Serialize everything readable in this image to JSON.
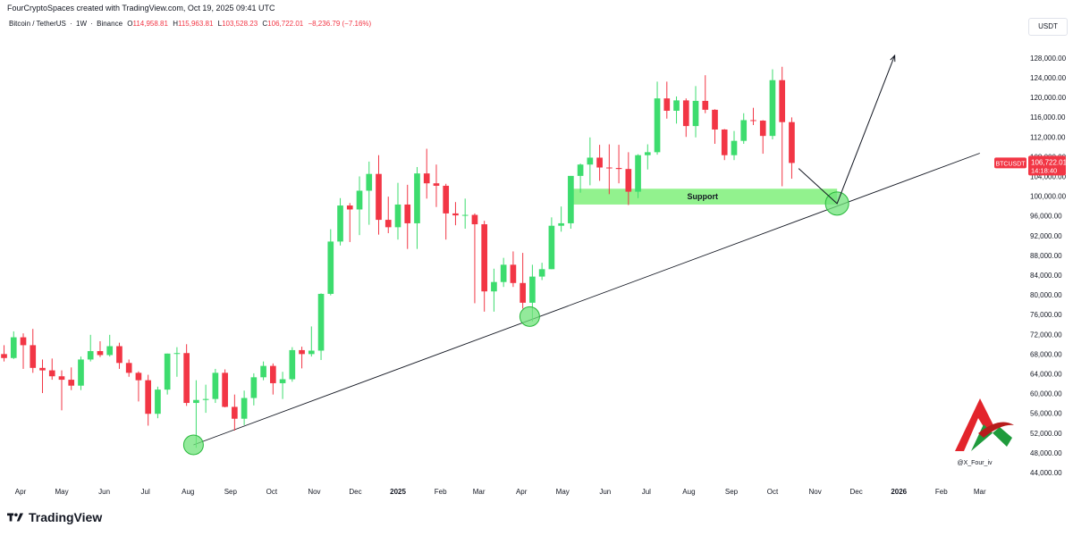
{
  "header": {
    "attribution": "FourCryptoSpaces created with TradingView.com, Oct 19, 2025 09:41 UTC",
    "symbol": "Bitcoin / TetherUS",
    "interval": "1W",
    "exchange": "Binance",
    "ohlc": {
      "open_label": "O",
      "open": "114,958.81",
      "high_label": "H",
      "high": "115,963.81",
      "low_label": "L",
      "low": "103,528.23",
      "close_label": "C",
      "close": "106,722.01",
      "change": "−8,236.79 (−7.16%)"
    }
  },
  "currency_button": "USDT",
  "price_badge": {
    "ticker": "BTCUSDT",
    "price": "106,722.01",
    "countdown": "14:18:40"
  },
  "annotation": {
    "support_label": "Support"
  },
  "watermark": {
    "handle": "@X_Four_iv"
  },
  "footer": {
    "brand": "TradingView"
  },
  "colors": {
    "up": "#3ddc6e",
    "down": "#f23645",
    "support": "#7ff07a",
    "axis_text": "#131722"
  },
  "chart_data": {
    "type": "candlestick",
    "interval": "1W",
    "y_axis_ticks": [
      44000,
      48000,
      52000,
      56000,
      60000,
      64000,
      68000,
      72000,
      76000,
      80000,
      84000,
      88000,
      92000,
      96000,
      100000,
      104000,
      108000,
      112000,
      116000,
      120000,
      124000,
      128000
    ],
    "y_axis_tick_labels": [
      "44,000.00",
      "48,000.00",
      "52,000.00",
      "56,000.00",
      "60,000.00",
      "64,000.00",
      "68,000.00",
      "72,000.00",
      "76,000.00",
      "80,000.00",
      "84,000.00",
      "88,000.00",
      "92,000.00",
      "96,000.00",
      "100,000.00",
      "104,000.00",
      "108,000.00",
      "112,000.00",
      "116,000.00",
      "120,000.00",
      "124,000.00",
      "128,000.00"
    ],
    "ylim": [
      42000,
      132500
    ],
    "y_scale": "linear",
    "x_axis_ticks": [
      {
        "label": "Apr",
        "date": "2024-04-01",
        "bold": false
      },
      {
        "label": "May",
        "date": "2024-05-01",
        "bold": false
      },
      {
        "label": "Jun",
        "date": "2024-06-01",
        "bold": false
      },
      {
        "label": "Jul",
        "date": "2024-07-01",
        "bold": false
      },
      {
        "label": "Aug",
        "date": "2024-08-01",
        "bold": false
      },
      {
        "label": "Sep",
        "date": "2024-09-01",
        "bold": false
      },
      {
        "label": "Oct",
        "date": "2024-10-01",
        "bold": false
      },
      {
        "label": "Nov",
        "date": "2024-11-01",
        "bold": false
      },
      {
        "label": "Dec",
        "date": "2024-12-01",
        "bold": false
      },
      {
        "label": "2025",
        "date": "2025-01-01",
        "bold": true
      },
      {
        "label": "Feb",
        "date": "2025-02-01",
        "bold": false
      },
      {
        "label": "Mar",
        "date": "2025-03-01",
        "bold": false
      },
      {
        "label": "Apr",
        "date": "2025-04-01",
        "bold": false
      },
      {
        "label": "May",
        "date": "2025-05-01",
        "bold": false
      },
      {
        "label": "Jun",
        "date": "2025-06-01",
        "bold": false
      },
      {
        "label": "Jul",
        "date": "2025-07-01",
        "bold": false
      },
      {
        "label": "Aug",
        "date": "2025-08-01",
        "bold": false
      },
      {
        "label": "Sep",
        "date": "2025-09-01",
        "bold": false
      },
      {
        "label": "Oct",
        "date": "2025-10-01",
        "bold": false
      },
      {
        "label": "Nov",
        "date": "2025-11-01",
        "bold": false
      },
      {
        "label": "Dec",
        "date": "2025-12-01",
        "bold": false
      },
      {
        "label": "2026",
        "date": "2026-01-01",
        "bold": true
      },
      {
        "label": "Feb",
        "date": "2026-02-01",
        "bold": false
      },
      {
        "label": "Mar",
        "date": "2026-03-01",
        "bold": false
      }
    ],
    "xlim": [
      "2024-03-17",
      "2026-03-22"
    ],
    "candles": [
      {
        "date": "2024-03-18",
        "open": 68000,
        "high": 69800,
        "low": 66500,
        "close": 67200
      },
      {
        "date": "2024-03-25",
        "open": 67200,
        "high": 72600,
        "low": 67000,
        "close": 71400
      },
      {
        "date": "2024-04-01",
        "open": 71400,
        "high": 72200,
        "low": 65000,
        "close": 69800
      },
      {
        "date": "2024-04-08",
        "open": 69800,
        "high": 73100,
        "low": 64200,
        "close": 65200
      },
      {
        "date": "2024-04-15",
        "open": 65200,
        "high": 66900,
        "low": 60100,
        "close": 64700
      },
      {
        "date": "2024-04-22",
        "open": 64700,
        "high": 67100,
        "low": 62800,
        "close": 63500
      },
      {
        "date": "2024-04-29",
        "open": 63500,
        "high": 64700,
        "low": 56600,
        "close": 62800
      },
      {
        "date": "2024-05-06",
        "open": 62800,
        "high": 65300,
        "low": 60700,
        "close": 61600
      },
      {
        "date": "2024-05-13",
        "open": 61600,
        "high": 67500,
        "low": 60700,
        "close": 66900
      },
      {
        "date": "2024-05-20",
        "open": 66900,
        "high": 71900,
        "low": 66500,
        "close": 68600
      },
      {
        "date": "2024-05-27",
        "open": 68600,
        "high": 70600,
        "low": 67400,
        "close": 67800
      },
      {
        "date": "2024-06-03",
        "open": 67800,
        "high": 71900,
        "low": 67500,
        "close": 69600
      },
      {
        "date": "2024-06-10",
        "open": 69600,
        "high": 70300,
        "low": 65000,
        "close": 66200
      },
      {
        "date": "2024-06-17",
        "open": 66200,
        "high": 66900,
        "low": 63400,
        "close": 64200
      },
      {
        "date": "2024-06-24",
        "open": 64200,
        "high": 64500,
        "low": 58400,
        "close": 62700
      },
      {
        "date": "2024-07-01",
        "open": 62700,
        "high": 63800,
        "low": 53500,
        "close": 55900
      },
      {
        "date": "2024-07-08",
        "open": 55900,
        "high": 61400,
        "low": 55000,
        "close": 60800
      },
      {
        "date": "2024-07-15",
        "open": 60800,
        "high": 68100,
        "low": 59800,
        "close": 68100
      },
      {
        "date": "2024-07-22",
        "open": 68100,
        "high": 69400,
        "low": 63400,
        "close": 68200
      },
      {
        "date": "2024-07-29",
        "open": 68200,
        "high": 70000,
        "low": 57500,
        "close": 58100
      },
      {
        "date": "2024-08-05",
        "open": 58100,
        "high": 62700,
        "low": 49000,
        "close": 58700
      },
      {
        "date": "2024-08-12",
        "open": 58700,
        "high": 61800,
        "low": 56100,
        "close": 58900
      },
      {
        "date": "2024-08-19",
        "open": 58900,
        "high": 65000,
        "low": 58100,
        "close": 64200
      },
      {
        "date": "2024-08-26",
        "open": 64200,
        "high": 64900,
        "low": 57200,
        "close": 57300
      },
      {
        "date": "2024-09-02",
        "open": 57300,
        "high": 59800,
        "low": 52500,
        "close": 54900
      },
      {
        "date": "2024-09-09",
        "open": 54900,
        "high": 60600,
        "low": 53600,
        "close": 59100
      },
      {
        "date": "2024-09-16",
        "open": 59100,
        "high": 64100,
        "low": 57600,
        "close": 63300
      },
      {
        "date": "2024-09-23",
        "open": 63300,
        "high": 66500,
        "low": 62700,
        "close": 65600
      },
      {
        "date": "2024-09-30",
        "open": 65600,
        "high": 66100,
        "low": 59800,
        "close": 62100
      },
      {
        "date": "2024-10-07",
        "open": 62100,
        "high": 64400,
        "low": 58900,
        "close": 62900
      },
      {
        "date": "2024-10-14",
        "open": 62900,
        "high": 69400,
        "low": 62400,
        "close": 68800
      },
      {
        "date": "2024-10-21",
        "open": 68800,
        "high": 69500,
        "low": 65100,
        "close": 68000
      },
      {
        "date": "2024-10-28",
        "open": 68000,
        "high": 73600,
        "low": 67500,
        "close": 68700
      },
      {
        "date": "2024-11-04",
        "open": 68700,
        "high": 80300,
        "low": 66800,
        "close": 80200
      },
      {
        "date": "2024-11-11",
        "open": 80200,
        "high": 93300,
        "low": 79900,
        "close": 90800
      },
      {
        "date": "2024-11-18",
        "open": 90800,
        "high": 99600,
        "low": 90000,
        "close": 98100
      },
      {
        "date": "2024-11-25",
        "open": 98100,
        "high": 98600,
        "low": 90700,
        "close": 97300
      },
      {
        "date": "2024-12-02",
        "open": 97300,
        "high": 104000,
        "low": 92100,
        "close": 101100
      },
      {
        "date": "2024-12-09",
        "open": 101100,
        "high": 107000,
        "low": 94200,
        "close": 104500
      },
      {
        "date": "2024-12-16",
        "open": 104500,
        "high": 108300,
        "low": 92200,
        "close": 95200
      },
      {
        "date": "2024-12-23",
        "open": 95200,
        "high": 99900,
        "low": 92500,
        "close": 93700
      },
      {
        "date": "2024-12-30",
        "open": 93700,
        "high": 102700,
        "low": 91200,
        "close": 98300
      },
      {
        "date": "2025-01-06",
        "open": 98300,
        "high": 102300,
        "low": 89300,
        "close": 94500
      },
      {
        "date": "2025-01-13",
        "open": 94500,
        "high": 105900,
        "low": 89300,
        "close": 104600
      },
      {
        "date": "2025-01-20",
        "open": 104600,
        "high": 109600,
        "low": 99500,
        "close": 102600
      },
      {
        "date": "2025-01-27",
        "open": 102600,
        "high": 106400,
        "low": 97800,
        "close": 102100
      },
      {
        "date": "2025-02-03",
        "open": 102100,
        "high": 102500,
        "low": 91200,
        "close": 96500
      },
      {
        "date": "2025-02-10",
        "open": 96500,
        "high": 98800,
        "low": 94100,
        "close": 96100
      },
      {
        "date": "2025-02-17",
        "open": 96100,
        "high": 99500,
        "low": 93400,
        "close": 96200
      },
      {
        "date": "2025-02-24",
        "open": 96200,
        "high": 96500,
        "low": 78300,
        "close": 94300
      },
      {
        "date": "2025-03-03",
        "open": 94300,
        "high": 95000,
        "low": 76600,
        "close": 80700
      },
      {
        "date": "2025-03-10",
        "open": 80700,
        "high": 85300,
        "low": 76600,
        "close": 82600
      },
      {
        "date": "2025-03-17",
        "open": 82600,
        "high": 87500,
        "low": 81600,
        "close": 86100
      },
      {
        "date": "2025-03-24",
        "open": 86100,
        "high": 88800,
        "low": 81600,
        "close": 82400
      },
      {
        "date": "2025-03-31",
        "open": 82400,
        "high": 88500,
        "low": 77200,
        "close": 78400
      },
      {
        "date": "2025-04-07",
        "open": 78400,
        "high": 86100,
        "low": 74600,
        "close": 83700
      },
      {
        "date": "2025-04-14",
        "open": 83700,
        "high": 86500,
        "low": 83000,
        "close": 85200
      },
      {
        "date": "2025-04-21",
        "open": 85200,
        "high": 95700,
        "low": 85200,
        "close": 94000
      },
      {
        "date": "2025-04-28",
        "open": 94000,
        "high": 97900,
        "low": 92800,
        "close": 94500
      },
      {
        "date": "2025-05-05",
        "open": 94500,
        "high": 104100,
        "low": 93400,
        "close": 104100
      },
      {
        "date": "2025-05-12",
        "open": 104100,
        "high": 106600,
        "low": 100700,
        "close": 106400
      },
      {
        "date": "2025-05-19",
        "open": 106400,
        "high": 111900,
        "low": 102200,
        "close": 107800
      },
      {
        "date": "2025-05-26",
        "open": 107800,
        "high": 110400,
        "low": 103100,
        "close": 105800
      },
      {
        "date": "2025-06-02",
        "open": 105800,
        "high": 110500,
        "low": 100400,
        "close": 105700
      },
      {
        "date": "2025-06-09",
        "open": 105700,
        "high": 110400,
        "low": 102600,
        "close": 105500
      },
      {
        "date": "2025-06-16",
        "open": 105500,
        "high": 108900,
        "low": 98200,
        "close": 100900
      },
      {
        "date": "2025-06-23",
        "open": 100900,
        "high": 108500,
        "low": 99600,
        "close": 108300
      },
      {
        "date": "2025-06-30",
        "open": 108300,
        "high": 110500,
        "low": 105400,
        "close": 108900
      },
      {
        "date": "2025-07-07",
        "open": 108900,
        "high": 123200,
        "low": 108400,
        "close": 119800
      },
      {
        "date": "2025-07-14",
        "open": 119800,
        "high": 123200,
        "low": 115700,
        "close": 117300
      },
      {
        "date": "2025-07-21",
        "open": 117300,
        "high": 120200,
        "low": 114700,
        "close": 119400
      },
      {
        "date": "2025-07-28",
        "open": 119400,
        "high": 119800,
        "low": 112000,
        "close": 114200
      },
      {
        "date": "2025-08-04",
        "open": 114200,
        "high": 122300,
        "low": 111900,
        "close": 119300
      },
      {
        "date": "2025-08-11",
        "open": 119300,
        "high": 124500,
        "low": 116800,
        "close": 117500
      },
      {
        "date": "2025-08-18",
        "open": 117500,
        "high": 117600,
        "low": 110600,
        "close": 113500
      },
      {
        "date": "2025-08-25",
        "open": 113500,
        "high": 113600,
        "low": 107300,
        "close": 108300
      },
      {
        "date": "2025-09-01",
        "open": 108300,
        "high": 113200,
        "low": 107300,
        "close": 111200
      },
      {
        "date": "2025-09-08",
        "open": 111200,
        "high": 116800,
        "low": 110600,
        "close": 115400
      },
      {
        "date": "2025-09-15",
        "open": 115400,
        "high": 117900,
        "low": 114400,
        "close": 115300
      },
      {
        "date": "2025-09-22",
        "open": 115300,
        "high": 115400,
        "low": 108600,
        "close": 112200
      },
      {
        "date": "2025-09-29",
        "open": 112200,
        "high": 125700,
        "low": 111500,
        "close": 123500
      },
      {
        "date": "2025-10-06",
        "open": 123500,
        "high": 126200,
        "low": 102000,
        "close": 115000
      },
      {
        "date": "2025-10-13",
        "open": 115000,
        "high": 115960,
        "low": 103530,
        "close": 106720
      }
    ],
    "trendline": {
      "start": {
        "date": "2024-08-05",
        "price": 49600
      },
      "end": {
        "date": "2026-03-01",
        "price": 108700
      }
    },
    "support_zone": {
      "from": "2025-05-05",
      "to": "2025-11-17",
      "low": 98300,
      "high": 101500,
      "label": "Support"
    },
    "touch_points": [
      {
        "date": "2024-08-05",
        "price": 49600
      },
      {
        "date": "2025-04-07",
        "price": 75600
      },
      {
        "date": "2025-11-17",
        "price": 98500
      }
    ],
    "projection_path": [
      {
        "date": "2025-10-20",
        "price": 105600
      },
      {
        "date": "2025-11-17",
        "price": 98500
      },
      {
        "date": "2025-12-29",
        "price": 128500
      }
    ],
    "last_price": 106722.01
  }
}
